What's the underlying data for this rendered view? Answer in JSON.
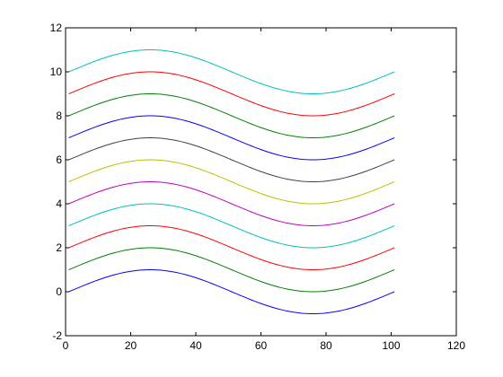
{
  "chart_data": {
    "type": "line",
    "title": "",
    "xlabel": "",
    "ylabel": "",
    "xlim": [
      0,
      120
    ],
    "ylim": [
      -2,
      12
    ],
    "grid": false,
    "legend": "none",
    "x_ticks": [
      "0",
      "20",
      "40",
      "60",
      "80",
      "100",
      "120"
    ],
    "y_ticks": [
      "-2",
      "0",
      "2",
      "4",
      "6",
      "8",
      "10",
      "12"
    ],
    "x": [
      1,
      101
    ],
    "curve": "y = offset + sin(2*pi*(x-1)/100)",
    "series": [
      {
        "offset": 0,
        "color": "#0000ff",
        "y_min": -1,
        "y_max": 1
      },
      {
        "offset": 1,
        "color": "#008000",
        "y_min": 0,
        "y_max": 2
      },
      {
        "offset": 2,
        "color": "#ff0000",
        "y_min": 1,
        "y_max": 3
      },
      {
        "offset": 3,
        "color": "#00bfbf",
        "y_min": 2,
        "y_max": 4
      },
      {
        "offset": 4,
        "color": "#bf00bf",
        "y_min": 3,
        "y_max": 5
      },
      {
        "offset": 5,
        "color": "#bfbf00",
        "y_min": 4,
        "y_max": 6
      },
      {
        "offset": 6,
        "color": "#404040",
        "y_min": 5,
        "y_max": 7
      },
      {
        "offset": 7,
        "color": "#0000ff",
        "y_min": 6,
        "y_max": 8
      },
      {
        "offset": 8,
        "color": "#008000",
        "y_min": 7,
        "y_max": 9
      },
      {
        "offset": 9,
        "color": "#ff0000",
        "y_min": 8,
        "y_max": 10
      },
      {
        "offset": 10,
        "color": "#00bfbf",
        "y_min": 9,
        "y_max": 11
      }
    ]
  }
}
